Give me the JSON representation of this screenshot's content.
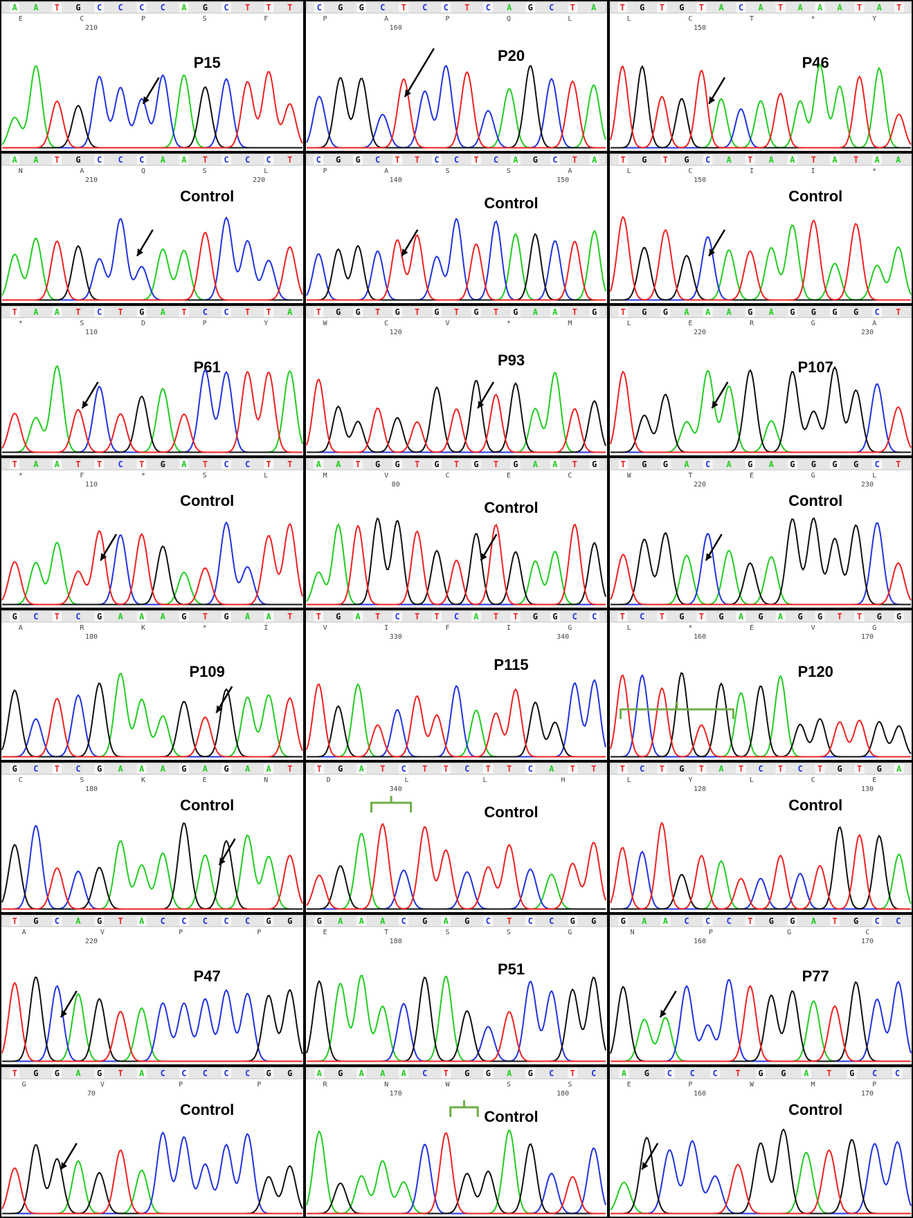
{
  "panels": [
    {
      "label": "P15",
      "bases": [
        "A",
        "A",
        "T",
        "G",
        "C",
        "C",
        "C",
        "C",
        "A",
        "G",
        "C",
        "T",
        "T",
        "T"
      ],
      "aa": [
        "E",
        "C",
        "P",
        "S",
        "F"
      ],
      "numbers": [
        210
      ]
    },
    {
      "label": "P20",
      "bases": [
        "C",
        "G",
        "G",
        "C",
        "T",
        "C",
        "C",
        "T",
        "C",
        "A",
        "G",
        "C",
        "T",
        "A"
      ],
      "aa": [
        "P",
        "A",
        "P",
        "Q",
        "L"
      ],
      "numbers": [
        160
      ]
    },
    {
      "label": "P46",
      "bases": [
        "T",
        "G",
        "T",
        "G",
        "T",
        "A",
        "C",
        "A",
        "T",
        "A",
        "A",
        "A",
        "T",
        "A",
        "T"
      ],
      "aa": [
        "L",
        "C",
        "T",
        "*",
        "Y"
      ],
      "numbers": [
        150
      ]
    },
    {
      "label": "Control",
      "bases": [
        "A",
        "A",
        "T",
        "G",
        "C",
        "C",
        "C",
        "A",
        "A",
        "T",
        "C",
        "C",
        "C",
        "T"
      ],
      "aa": [
        "N",
        "A",
        "Q",
        "S",
        "L"
      ],
      "numbers": [
        210,
        220
      ]
    },
    {
      "label": "Control",
      "bases": [
        "C",
        "G",
        "G",
        "C",
        "T",
        "T",
        "C",
        "C",
        "T",
        "C",
        "A",
        "G",
        "C",
        "T",
        "A"
      ],
      "aa": [
        "P",
        "A",
        "S",
        "S",
        "A"
      ],
      "numbers": [
        140,
        150
      ]
    },
    {
      "label": "Control",
      "bases": [
        "T",
        "G",
        "T",
        "G",
        "C",
        "A",
        "T",
        "A",
        "A",
        "T",
        "A",
        "T",
        "A",
        "A"
      ],
      "aa": [
        "L",
        "C",
        "I",
        "I",
        "*"
      ],
      "numbers": [
        150
      ]
    },
    {
      "label": "P61",
      "bases": [
        "T",
        "A",
        "A",
        "T",
        "C",
        "T",
        "G",
        "A",
        "T",
        "C",
        "C",
        "T",
        "T",
        "A"
      ],
      "aa": [
        "*",
        "S",
        "D",
        "P",
        "Y"
      ],
      "numbers": [
        110
      ]
    },
    {
      "label": "P93",
      "bases": [
        "T",
        "G",
        "G",
        "T",
        "G",
        "T",
        "G",
        "T",
        "G",
        "T",
        "G",
        "A",
        "A",
        "T",
        "G"
      ],
      "aa": [
        "W",
        "C",
        "V",
        "*",
        "M"
      ],
      "numbers": [
        120
      ]
    },
    {
      "label": "P107",
      "bases": [
        "T",
        "G",
        "G",
        "A",
        "A",
        "A",
        "G",
        "A",
        "G",
        "G",
        "G",
        "G",
        "C",
        "T"
      ],
      "aa": [
        "L",
        "E",
        "R",
        "G",
        "A"
      ],
      "numbers": [
        220,
        230
      ]
    },
    {
      "label": "Control",
      "bases": [
        "T",
        "A",
        "A",
        "T",
        "T",
        "C",
        "T",
        "G",
        "A",
        "T",
        "C",
        "C",
        "T",
        "T"
      ],
      "aa": [
        "*",
        "F",
        "*",
        "S",
        "L"
      ],
      "numbers": [
        110
      ]
    },
    {
      "label": "Control",
      "bases": [
        "A",
        "A",
        "T",
        "G",
        "G",
        "T",
        "G",
        "T",
        "G",
        "T",
        "G",
        "A",
        "A",
        "T",
        "G"
      ],
      "aa": [
        "M",
        "V",
        "C",
        "E",
        "C"
      ],
      "numbers": [
        80
      ]
    },
    {
      "label": "Control",
      "bases": [
        "T",
        "G",
        "G",
        "A",
        "C",
        "A",
        "G",
        "A",
        "G",
        "G",
        "G",
        "G",
        "C",
        "T"
      ],
      "aa": [
        "W",
        "T",
        "E",
        "G",
        "L"
      ],
      "numbers": [
        220,
        230
      ]
    },
    {
      "label": "P109",
      "bases": [
        "G",
        "C",
        "T",
        "C",
        "G",
        "A",
        "A",
        "A",
        "G",
        "T",
        "G",
        "A",
        "A",
        "T"
      ],
      "aa": [
        "A",
        "R",
        "K",
        "*",
        "I"
      ],
      "numbers": [
        180
      ]
    },
    {
      "label": "P115",
      "bases": [
        "T",
        "G",
        "A",
        "T",
        "C",
        "T",
        "T",
        "C",
        "A",
        "T",
        "T",
        "G",
        "G",
        "C",
        "C"
      ],
      "aa": [
        "V",
        "I",
        "F",
        "I",
        "G"
      ],
      "numbers": [
        330,
        340
      ]
    },
    {
      "label": "P120",
      "bases": [
        "T",
        "C",
        "T",
        "G",
        "T",
        "G",
        "A",
        "G",
        "A",
        "G",
        "G",
        "T",
        "T",
        "G",
        "G"
      ],
      "aa": [
        "L",
        "*",
        "E",
        "V",
        "G"
      ],
      "numbers": [
        160,
        170
      ]
    },
    {
      "label": "Control",
      "bases": [
        "G",
        "C",
        "T",
        "C",
        "G",
        "A",
        "A",
        "A",
        "G",
        "A",
        "G",
        "A",
        "A",
        "T"
      ],
      "aa": [
        "C",
        "S",
        "K",
        "E",
        "N"
      ],
      "numbers": [
        180
      ]
    },
    {
      "label": "Control",
      "bases": [
        "T",
        "G",
        "A",
        "T",
        "C",
        "T",
        "T",
        "C",
        "T",
        "T",
        "C",
        "A",
        "T",
        "T"
      ],
      "aa": [
        "D",
        "L",
        "L",
        "H"
      ],
      "numbers": [
        340
      ]
    },
    {
      "label": "Control",
      "bases": [
        "T",
        "C",
        "T",
        "G",
        "T",
        "A",
        "T",
        "C",
        "T",
        "C",
        "T",
        "G",
        "T",
        "G",
        "A"
      ],
      "aa": [
        "L",
        "Y",
        "L",
        "C",
        "E"
      ],
      "numbers": [
        120,
        130
      ]
    },
    {
      "label": "P47",
      "bases": [
        "T",
        "G",
        "C",
        "A",
        "G",
        "T",
        "A",
        "C",
        "C",
        "C",
        "C",
        "C",
        "G",
        "G"
      ],
      "aa": [
        "A",
        "V",
        "P",
        "P"
      ],
      "numbers": [
        220
      ]
    },
    {
      "label": "P51",
      "bases": [
        "G",
        "A",
        "A",
        "A",
        "C",
        "G",
        "A",
        "G",
        "C",
        "T",
        "C",
        "C",
        "G",
        "G"
      ],
      "aa": [
        "E",
        "T",
        "S",
        "S",
        "G"
      ],
      "numbers": [
        180
      ]
    },
    {
      "label": "P77",
      "bases": [
        "G",
        "A",
        "A",
        "C",
        "C",
        "C",
        "T",
        "G",
        "G",
        "A",
        "T",
        "G",
        "C",
        "C"
      ],
      "aa": [
        "N",
        "P",
        "G",
        "C"
      ],
      "numbers": [
        160,
        170
      ]
    },
    {
      "label": "Control",
      "bases": [
        "T",
        "G",
        "G",
        "A",
        "G",
        "T",
        "A",
        "C",
        "C",
        "C",
        "C",
        "C",
        "G",
        "G"
      ],
      "aa": [
        "G",
        "V",
        "P",
        "P"
      ],
      "numbers": [
        70
      ]
    },
    {
      "label": "Control",
      "bases": [
        "A",
        "G",
        "A",
        "A",
        "A",
        "C",
        "T",
        "G",
        "G",
        "A",
        "G",
        "C",
        "T",
        "C"
      ],
      "aa": [
        "R",
        "N",
        "W",
        "S",
        "S"
      ],
      "numbers": [
        170,
        180
      ]
    },
    {
      "label": "Control",
      "bases": [
        "A",
        "G",
        "C",
        "C",
        "C",
        "T",
        "G",
        "G",
        "A",
        "T",
        "G",
        "C",
        "C"
      ],
      "aa": [
        "E",
        "P",
        "W",
        "M",
        "P"
      ],
      "numbers": [
        160,
        170
      ]
    }
  ]
}
